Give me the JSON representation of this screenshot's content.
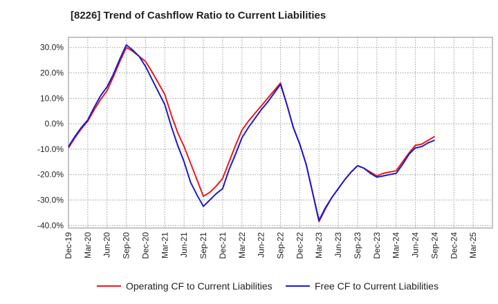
{
  "title": "[8226]  Trend of Cashflow Ratio to Current Liabilities",
  "chart_data": {
    "type": "line",
    "title": "[8226]  Trend of Cashflow Ratio to Current Liabilities",
    "xlabel": "",
    "ylabel": "",
    "ylim": [
      -40,
      34
    ],
    "y_ticks": [
      30,
      20,
      10,
      0,
      -10,
      -20,
      -30,
      -40
    ],
    "y_tick_labels": [
      "30.0%",
      "20.0%",
      "10.0%",
      "0.0%",
      "-10.0%",
      "-20.0%",
      "-30.0%",
      "-40.0%"
    ],
    "x_tick_labels": [
      "Dec-19",
      "Mar-20",
      "Jun-20",
      "Sep-20",
      "Dec-20",
      "Mar-21",
      "Jun-21",
      "Sep-21",
      "Dec-21",
      "Mar-22",
      "Jun-22",
      "Sep-22",
      "Dec-22",
      "Mar-23",
      "Jun-23",
      "Sep-23",
      "Dec-23",
      "Mar-24",
      "Jun-24",
      "Sep-24",
      "Dec-24",
      "Mar-25"
    ],
    "grid": true,
    "legend_position": "bottom",
    "x": [
      "Dec-19",
      "Jan-20",
      "Feb-20",
      "Mar-20",
      "Apr-20",
      "May-20",
      "Jun-20",
      "Jul-20",
      "Aug-20",
      "Sep-20",
      "Oct-20",
      "Nov-20",
      "Dec-20",
      "Jan-21",
      "Feb-21",
      "Mar-21",
      "Apr-21",
      "May-21",
      "Jun-21",
      "Jul-21",
      "Aug-21",
      "Sep-21",
      "Oct-21",
      "Nov-21",
      "Dec-21",
      "Jan-22",
      "Feb-22",
      "Mar-22",
      "Apr-22",
      "May-22",
      "Jun-22",
      "Jul-22",
      "Aug-22",
      "Sep-22",
      "Oct-22",
      "Nov-22",
      "Dec-22",
      "Jan-23",
      "Feb-23",
      "Mar-23",
      "Apr-23",
      "May-23",
      "Jun-23",
      "Jul-23",
      "Aug-23",
      "Sep-23",
      "Oct-23",
      "Nov-23",
      "Dec-23",
      "Jan-24",
      "Feb-24",
      "Mar-24",
      "Apr-24",
      "May-24",
      "Jun-24",
      "Jul-24",
      "Aug-24",
      "Sep-24"
    ],
    "series": [
      {
        "name": "Operating CF to Current Liabilities",
        "color": "#e8191a",
        "values": [
          -9.5,
          -5.5,
          -2.0,
          1.0,
          5.5,
          9.5,
          13.0,
          18.5,
          24.5,
          30.0,
          28.5,
          26.5,
          24.5,
          20.5,
          16.0,
          11.5,
          3.5,
          -3.5,
          -9.0,
          -15.5,
          -22.0,
          -28.5,
          -27.0,
          -24.5,
          -21.5,
          -15.0,
          -8.5,
          -2.5,
          1.0,
          4.0,
          7.0,
          10.0,
          13.0,
          16.0,
          7.5,
          -1.5,
          -8.0,
          -16.0,
          -27.0,
          -38.5,
          -33.5,
          -29.0,
          -25.5,
          -22.0,
          -19.0,
          -16.5,
          -17.5,
          -19.0,
          -20.5,
          -19.5,
          -19.0,
          -18.5,
          -15.0,
          -11.5,
          -8.5,
          -8.0,
          -6.5,
          -5.0
        ]
      },
      {
        "name": "Free CF to Current Liabilities",
        "color": "#1a1acc",
        "values": [
          -9.0,
          -5.0,
          -1.5,
          1.5,
          6.5,
          11.0,
          14.5,
          19.5,
          25.5,
          31.0,
          29.0,
          26.5,
          22.5,
          17.5,
          12.5,
          7.5,
          -1.0,
          -8.5,
          -15.0,
          -23.0,
          -28.0,
          -32.5,
          -30.0,
          -27.5,
          -25.5,
          -18.0,
          -12.0,
          -5.5,
          -1.5,
          2.0,
          5.5,
          8.5,
          12.0,
          15.5,
          7.5,
          -1.5,
          -8.0,
          -16.0,
          -27.0,
          -38.0,
          -33.0,
          -29.0,
          -25.5,
          -22.0,
          -19.0,
          -16.5,
          -17.5,
          -19.5,
          -21.0,
          -20.5,
          -20.0,
          -19.5,
          -16.0,
          -12.0,
          -9.5,
          -9.0,
          -7.5,
          -6.5
        ]
      }
    ]
  }
}
